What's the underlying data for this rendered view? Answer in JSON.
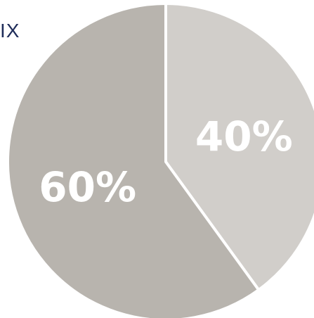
{
  "partial_title": "IX",
  "chart_data": {
    "type": "pie",
    "title": "",
    "slices": [
      {
        "label": "40%",
        "value": 40,
        "color": "#d1ceca"
      },
      {
        "label": "60%",
        "value": 60,
        "color": "#b8b4ae"
      }
    ],
    "start_angle_deg": 0,
    "direction": "clockwise",
    "slice_separator_color": "#ffffff"
  }
}
